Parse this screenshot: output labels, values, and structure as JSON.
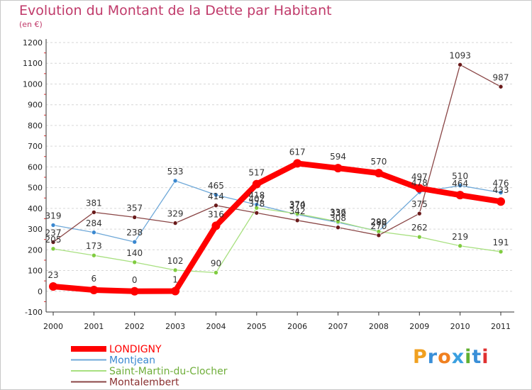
{
  "title": "Evolution du Montant de la Dette par Habitant",
  "unit_label": "(en €)",
  "logo": {
    "text": "Proxiti",
    "letters": [
      "P",
      "r",
      "o",
      "x",
      "i",
      "t",
      "i"
    ],
    "colors": [
      "#f0a020",
      "#3a8fd8",
      "#f08020",
      "#3aa0e0",
      "#60b030",
      "#3a8fd8",
      "#e03030"
    ]
  },
  "chart_data": {
    "type": "line",
    "title": "Evolution du Montant de la Dette par Habitant",
    "xlabel": "",
    "ylabel": "(en €)",
    "x": [
      "2000",
      "2001",
      "2002",
      "2003",
      "2004",
      "2005",
      "2006",
      "2007",
      "2008",
      "2009",
      "2010",
      "2011"
    ],
    "ylim": [
      -100,
      1200
    ],
    "yticks": [
      -100,
      0,
      100,
      200,
      300,
      400,
      500,
      600,
      700,
      800,
      900,
      1000,
      1100,
      1200
    ],
    "grid": "horizontal dashed",
    "legend_position": "bottom-left",
    "series": [
      {
        "name": "Montjean",
        "color": "#6ea8d8",
        "marker": "#3a88d0",
        "width": 1.3,
        "values": [
          319,
          284,
          238,
          533,
          465,
          418,
          370,
          332,
          290,
          478,
          510,
          476
        ],
        "labels": [
          "319",
          "284",
          "238",
          "533",
          "465",
          "418",
          "370",
          "332",
          "290",
          "478",
          "510",
          "476"
        ]
      },
      {
        "name": "Saint-Martin-du-Clocher",
        "color": "#a8e080",
        "marker": "#80cc40",
        "width": 1.3,
        "values": [
          205,
          173,
          140,
          102,
          90,
          402,
          374,
          336,
          288,
          262,
          219,
          191
        ],
        "labels": [
          "205",
          "173",
          "140",
          "102",
          "90",
          "402",
          "374",
          "336",
          "288",
          "262",
          "219",
          "191"
        ]
      },
      {
        "name": "Montalembert",
        "color": "#8a4646",
        "marker": "#6a1a1a",
        "width": 1.3,
        "values": [
          237,
          381,
          357,
          329,
          414,
          378,
          342,
          308,
          270,
          375,
          1093,
          987
        ],
        "labels": [
          "237",
          "381",
          "357",
          "329",
          "414",
          "378",
          "342",
          "308",
          "270",
          "375",
          "1093",
          "987"
        ]
      },
      {
        "name": "LONDIGNY",
        "color": "#ff0000",
        "marker": "#ff0000",
        "width": 8,
        "values": [
          23,
          6,
          0,
          1,
          316,
          517,
          617,
          594,
          570,
          497,
          464,
          433
        ],
        "labels": [
          "23",
          "6",
          "0",
          "1",
          "316",
          "517",
          "617",
          "594",
          "570",
          "497",
          "464",
          "433"
        ]
      }
    ],
    "legend": [
      {
        "name": "LONDIGNY",
        "color": "#ff0000",
        "text_color": "#ff0000"
      },
      {
        "name": "Montjean",
        "color": "#6ea8d8",
        "text_color": "#3a88d0"
      },
      {
        "name": "Saint-Martin-du-Clocher",
        "color": "#a8e080",
        "text_color": "#6fae3a"
      },
      {
        "name": "Montalembert",
        "color": "#8a4646",
        "text_color": "#8a3030"
      }
    ]
  }
}
